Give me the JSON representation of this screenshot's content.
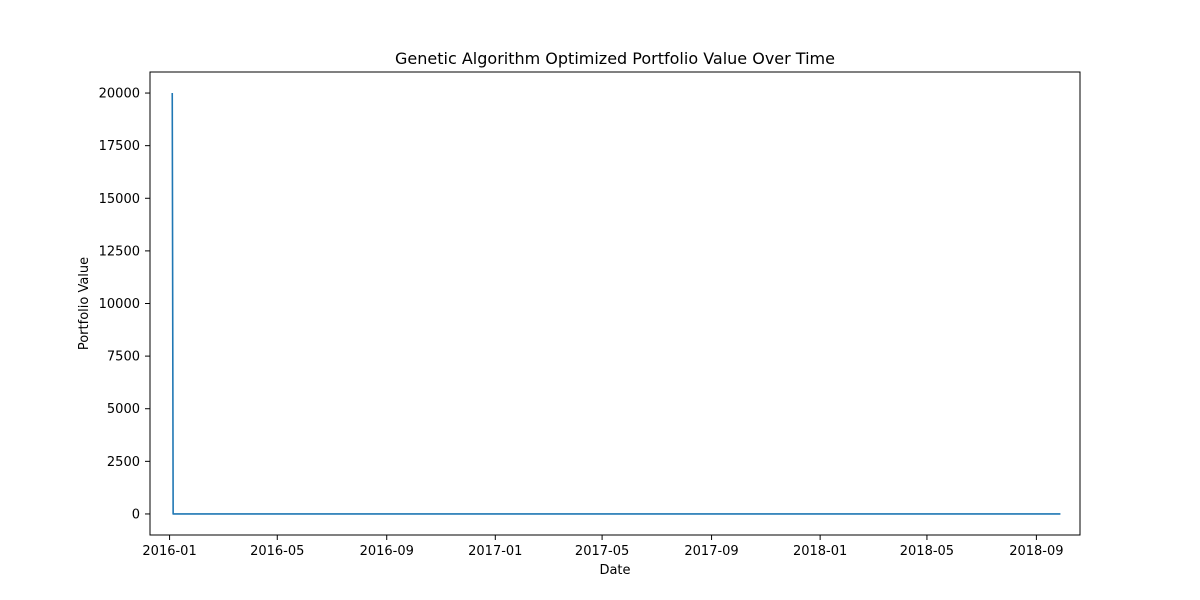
{
  "chart_data": {
    "type": "line",
    "title": "Genetic Algorithm Optimized Portfolio Value Over Time",
    "xlabel": "Date",
    "ylabel": "Portfolio Value",
    "x_tick_labels": [
      "2016-01",
      "2016-05",
      "2016-09",
      "2017-01",
      "2017-05",
      "2017-09",
      "2018-01",
      "2018-05",
      "2018-09"
    ],
    "y_tick_labels": [
      "0",
      "2500",
      "5000",
      "7500",
      "10000",
      "12500",
      "15000",
      "17500",
      "20000"
    ],
    "y_ticks": [
      0,
      2500,
      5000,
      7500,
      10000,
      12500,
      15000,
      17500,
      20000
    ],
    "xlim": [
      "2015-12-10",
      "2018-10-20"
    ],
    "ylim": [
      -1000,
      21000
    ],
    "grid": false,
    "series": [
      {
        "color": "#1f77b4",
        "x": [
          "2016-01-04",
          "2016-01-05",
          "2016-01-06",
          "2018-09-28"
        ],
        "y": [
          20000,
          0,
          0,
          0
        ]
      }
    ]
  }
}
